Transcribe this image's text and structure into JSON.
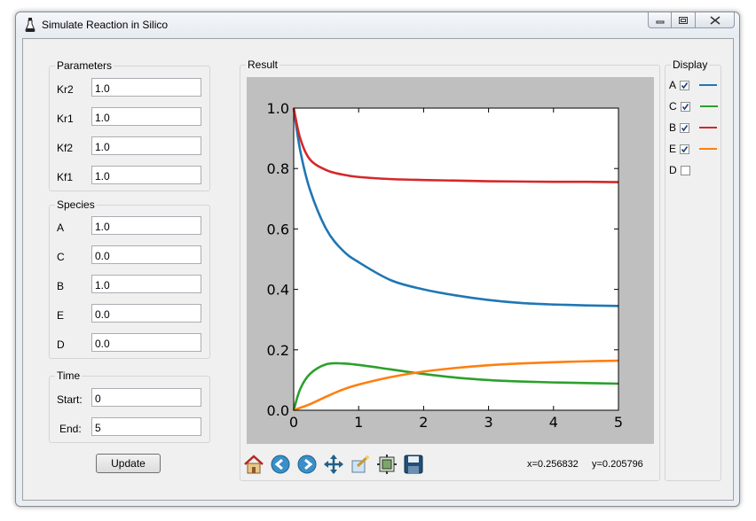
{
  "window": {
    "title": "Simulate Reaction in Silico",
    "controls": {
      "minimize": "minimize-icon",
      "restore": "restore-icon",
      "close": "close-icon"
    }
  },
  "parameters": {
    "title": "Parameters",
    "items": [
      {
        "label": "Kr2",
        "value": "1.0"
      },
      {
        "label": "Kr1",
        "value": "1.0"
      },
      {
        "label": "Kf2",
        "value": "1.0"
      },
      {
        "label": "Kf1",
        "value": "1.0"
      }
    ]
  },
  "species": {
    "title": "Species",
    "items": [
      {
        "label": "A",
        "value": "1.0"
      },
      {
        "label": "C",
        "value": "0.0"
      },
      {
        "label": "B",
        "value": "1.0"
      },
      {
        "label": "E",
        "value": "0.0"
      },
      {
        "label": "D",
        "value": "0.0"
      }
    ]
  },
  "time": {
    "title": "Time",
    "start_label": "Start:",
    "start_value": "0",
    "end_label": "End:",
    "end_value": "5"
  },
  "update_label": "Update",
  "result": {
    "title": "Result",
    "coords": {
      "x": "x=0.256832",
      "y": "y=0.205796"
    },
    "toolbar": [
      "home-icon",
      "back-icon",
      "forward-icon",
      "pan-icon",
      "zoom-icon",
      "subplots-icon",
      "save-icon"
    ]
  },
  "display": {
    "title": "Display",
    "items": [
      {
        "label": "A",
        "checked": true,
        "color": "#1f77b4"
      },
      {
        "label": "C",
        "checked": true,
        "color": "#2ca02c"
      },
      {
        "label": "B",
        "checked": true,
        "color": "#d62728"
      },
      {
        "label": "E",
        "checked": true,
        "color": "#ff7f0e"
      },
      {
        "label": "D",
        "checked": false,
        "color": ""
      }
    ]
  },
  "chart_data": {
    "type": "line",
    "title": "",
    "xlabel": "",
    "ylabel": "",
    "xlim": [
      0,
      5
    ],
    "ylim": [
      0,
      1.0
    ],
    "xticks": [
      "0",
      "1",
      "2",
      "3",
      "4",
      "5"
    ],
    "yticks": [
      "0.0",
      "0.2",
      "0.4",
      "0.6",
      "0.8",
      "1.0"
    ],
    "grid": false,
    "x": [
      0,
      0.1,
      0.25,
      0.5,
      0.75,
      1.0,
      1.5,
      2.0,
      2.5,
      3.0,
      3.5,
      4.0,
      4.5,
      5.0
    ],
    "series": [
      {
        "name": "A",
        "color": "#1f77b4",
        "values": [
          1.0,
          0.86,
          0.73,
          0.6,
          0.53,
          0.49,
          0.43,
          0.4,
          0.38,
          0.365,
          0.355,
          0.35,
          0.347,
          0.345
        ]
      },
      {
        "name": "B",
        "color": "#d62728",
        "values": [
          1.0,
          0.9,
          0.83,
          0.795,
          0.78,
          0.772,
          0.765,
          0.762,
          0.76,
          0.758,
          0.757,
          0.756,
          0.756,
          0.755
        ]
      },
      {
        "name": "C",
        "color": "#2ca02c",
        "values": [
          0.0,
          0.07,
          0.12,
          0.152,
          0.155,
          0.15,
          0.135,
          0.12,
          0.108,
          0.1,
          0.095,
          0.092,
          0.09,
          0.088
        ]
      },
      {
        "name": "E",
        "color": "#ff7f0e",
        "values": [
          0.0,
          0.008,
          0.02,
          0.045,
          0.068,
          0.085,
          0.11,
          0.128,
          0.14,
          0.149,
          0.155,
          0.159,
          0.162,
          0.164
        ]
      }
    ]
  }
}
